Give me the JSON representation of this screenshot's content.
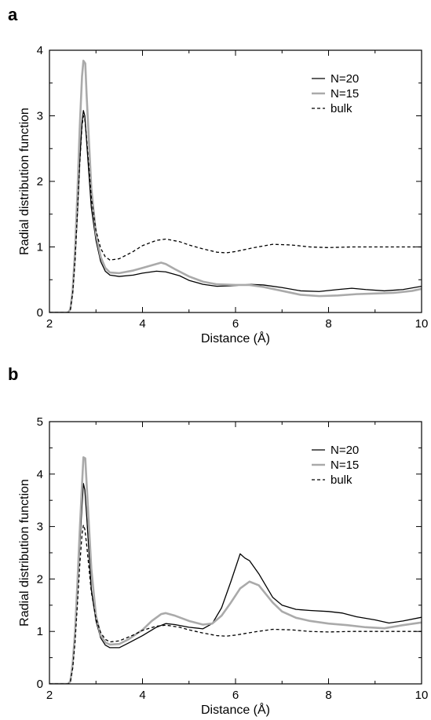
{
  "panels": [
    {
      "letter": "a",
      "chart_data": {
        "type": "line",
        "title": "",
        "xlabel": "Distance (Å)",
        "ylabel": "Radial distribution function",
        "xlim": [
          2,
          10
        ],
        "ylim": [
          0,
          4
        ],
        "xticks": [
          2,
          4,
          6,
          8,
          10
        ],
        "yticks": [
          0,
          1,
          2,
          3,
          4
        ],
        "grid": false,
        "legend_position": "top-right",
        "series": [
          {
            "name": "N=20",
            "color": "#000000",
            "style": "solid",
            "points": [
              [
                2.0,
                0
              ],
              [
                2.4,
                0
              ],
              [
                2.45,
                0.05
              ],
              [
                2.5,
                0.3
              ],
              [
                2.55,
                0.8
              ],
              [
                2.6,
                1.5
              ],
              [
                2.65,
                2.3
              ],
              [
                2.7,
                2.9
              ],
              [
                2.73,
                3.08
              ],
              [
                2.76,
                3.0
              ],
              [
                2.8,
                2.6
              ],
              [
                2.85,
                2.1
              ],
              [
                2.9,
                1.6
              ],
              [
                3.0,
                1.1
              ],
              [
                3.1,
                0.78
              ],
              [
                3.2,
                0.63
              ],
              [
                3.3,
                0.57
              ],
              [
                3.5,
                0.55
              ],
              [
                3.8,
                0.57
              ],
              [
                4.0,
                0.6
              ],
              [
                4.3,
                0.63
              ],
              [
                4.5,
                0.62
              ],
              [
                4.8,
                0.56
              ],
              [
                5.0,
                0.49
              ],
              [
                5.3,
                0.43
              ],
              [
                5.6,
                0.4
              ],
              [
                6.0,
                0.41
              ],
              [
                6.3,
                0.43
              ],
              [
                6.6,
                0.42
              ],
              [
                7.0,
                0.38
              ],
              [
                7.4,
                0.33
              ],
              [
                7.8,
                0.32
              ],
              [
                8.2,
                0.35
              ],
              [
                8.5,
                0.37
              ],
              [
                8.8,
                0.35
              ],
              [
                9.2,
                0.33
              ],
              [
                9.6,
                0.35
              ],
              [
                10.0,
                0.4
              ]
            ]
          },
          {
            "name": "N=15",
            "color": "#aaaaaa",
            "style": "solid",
            "points": [
              [
                2.0,
                0
              ],
              [
                2.4,
                0
              ],
              [
                2.45,
                0.05
              ],
              [
                2.5,
                0.35
              ],
              [
                2.55,
                0.95
              ],
              [
                2.6,
                1.8
              ],
              [
                2.65,
                2.8
              ],
              [
                2.7,
                3.6
              ],
              [
                2.73,
                3.84
              ],
              [
                2.77,
                3.8
              ],
              [
                2.8,
                3.3
              ],
              [
                2.85,
                2.6
              ],
              [
                2.9,
                1.9
              ],
              [
                3.0,
                1.2
              ],
              [
                3.1,
                0.85
              ],
              [
                3.2,
                0.68
              ],
              [
                3.3,
                0.61
              ],
              [
                3.5,
                0.6
              ],
              [
                3.8,
                0.64
              ],
              [
                4.0,
                0.68
              ],
              [
                4.2,
                0.72
              ],
              [
                4.4,
                0.76
              ],
              [
                4.5,
                0.74
              ],
              [
                4.7,
                0.66
              ],
              [
                5.0,
                0.55
              ],
              [
                5.3,
                0.47
              ],
              [
                5.6,
                0.43
              ],
              [
                6.0,
                0.42
              ],
              [
                6.3,
                0.42
              ],
              [
                6.6,
                0.39
              ],
              [
                7.0,
                0.33
              ],
              [
                7.4,
                0.27
              ],
              [
                7.8,
                0.25
              ],
              [
                8.2,
                0.26
              ],
              [
                8.6,
                0.28
              ],
              [
                9.0,
                0.29
              ],
              [
                9.4,
                0.3
              ],
              [
                9.8,
                0.33
              ],
              [
                10.0,
                0.36
              ]
            ]
          },
          {
            "name": "bulk",
            "color": "#000000",
            "style": "dashed",
            "points": [
              [
                2.0,
                0
              ],
              [
                2.4,
                0
              ],
              [
                2.45,
                0.05
              ],
              [
                2.5,
                0.3
              ],
              [
                2.55,
                0.8
              ],
              [
                2.6,
                1.5
              ],
              [
                2.65,
                2.25
              ],
              [
                2.7,
                2.85
              ],
              [
                2.73,
                3.0
              ],
              [
                2.76,
                2.95
              ],
              [
                2.8,
                2.65
              ],
              [
                2.85,
                2.2
              ],
              [
                2.9,
                1.75
              ],
              [
                3.0,
                1.25
              ],
              [
                3.1,
                0.98
              ],
              [
                3.2,
                0.85
              ],
              [
                3.3,
                0.8
              ],
              [
                3.5,
                0.82
              ],
              [
                3.8,
                0.93
              ],
              [
                4.0,
                1.02
              ],
              [
                4.3,
                1.1
              ],
              [
                4.5,
                1.12
              ],
              [
                4.8,
                1.08
              ],
              [
                5.0,
                1.03
              ],
              [
                5.3,
                0.97
              ],
              [
                5.6,
                0.92
              ],
              [
                5.8,
                0.91
              ],
              [
                6.0,
                0.93
              ],
              [
                6.4,
                0.99
              ],
              [
                6.8,
                1.04
              ],
              [
                7.2,
                1.03
              ],
              [
                7.6,
                1.0
              ],
              [
                8.0,
                0.99
              ],
              [
                8.5,
                1.0
              ],
              [
                9.0,
                1.0
              ],
              [
                10.0,
                1.0
              ]
            ]
          }
        ]
      }
    },
    {
      "letter": "b",
      "chart_data": {
        "type": "line",
        "title": "",
        "xlabel": "Distance (Å)",
        "ylabel": "Radial distribution function",
        "xlim": [
          2,
          10
        ],
        "ylim": [
          0,
          5
        ],
        "xticks": [
          2,
          4,
          6,
          8,
          10
        ],
        "yticks": [
          0,
          1,
          2,
          3,
          4,
          5
        ],
        "grid": false,
        "legend_position": "top-right",
        "series": [
          {
            "name": "N=20",
            "color": "#000000",
            "style": "solid",
            "points": [
              [
                2.0,
                0
              ],
              [
                2.4,
                0
              ],
              [
                2.45,
                0.05
              ],
              [
                2.5,
                0.35
              ],
              [
                2.55,
                0.9
              ],
              [
                2.6,
                1.7
              ],
              [
                2.65,
                2.6
              ],
              [
                2.7,
                3.4
              ],
              [
                2.73,
                3.82
              ],
              [
                2.76,
                3.7
              ],
              [
                2.8,
                3.2
              ],
              [
                2.85,
                2.5
              ],
              [
                2.9,
                1.8
              ],
              [
                3.0,
                1.2
              ],
              [
                3.1,
                0.88
              ],
              [
                3.2,
                0.74
              ],
              [
                3.3,
                0.69
              ],
              [
                3.5,
                0.69
              ],
              [
                3.7,
                0.78
              ],
              [
                4.0,
                0.92
              ],
              [
                4.3,
                1.08
              ],
              [
                4.5,
                1.15
              ],
              [
                4.7,
                1.13
              ],
              [
                5.0,
                1.08
              ],
              [
                5.3,
                1.05
              ],
              [
                5.5,
                1.15
              ],
              [
                5.7,
                1.45
              ],
              [
                5.9,
                1.95
              ],
              [
                6.1,
                2.48
              ],
              [
                6.2,
                2.4
              ],
              [
                6.3,
                2.35
              ],
              [
                6.5,
                2.1
              ],
              [
                6.8,
                1.65
              ],
              [
                7.0,
                1.5
              ],
              [
                7.3,
                1.42
              ],
              [
                7.6,
                1.4
              ],
              [
                8.0,
                1.38
              ],
              [
                8.3,
                1.35
              ],
              [
                8.6,
                1.28
              ],
              [
                9.0,
                1.22
              ],
              [
                9.3,
                1.16
              ],
              [
                9.6,
                1.2
              ],
              [
                10.0,
                1.27
              ]
            ]
          },
          {
            "name": "N=15",
            "color": "#aaaaaa",
            "style": "solid",
            "points": [
              [
                2.0,
                0
              ],
              [
                2.4,
                0
              ],
              [
                2.45,
                0.05
              ],
              [
                2.5,
                0.4
              ],
              [
                2.55,
                1.0
              ],
              [
                2.6,
                1.9
              ],
              [
                2.65,
                2.9
              ],
              [
                2.7,
                3.8
              ],
              [
                2.73,
                4.32
              ],
              [
                2.77,
                4.3
              ],
              [
                2.8,
                3.8
              ],
              [
                2.85,
                3.0
              ],
              [
                2.9,
                2.2
              ],
              [
                3.0,
                1.3
              ],
              [
                3.1,
                0.93
              ],
              [
                3.2,
                0.79
              ],
              [
                3.3,
                0.75
              ],
              [
                3.5,
                0.76
              ],
              [
                3.7,
                0.85
              ],
              [
                4.0,
                1.03
              ],
              [
                4.2,
                1.2
              ],
              [
                4.4,
                1.33
              ],
              [
                4.5,
                1.35
              ],
              [
                4.7,
                1.3
              ],
              [
                5.0,
                1.2
              ],
              [
                5.3,
                1.13
              ],
              [
                5.5,
                1.15
              ],
              [
                5.7,
                1.3
              ],
              [
                5.9,
                1.55
              ],
              [
                6.1,
                1.82
              ],
              [
                6.3,
                1.95
              ],
              [
                6.5,
                1.88
              ],
              [
                6.8,
                1.55
              ],
              [
                7.0,
                1.38
              ],
              [
                7.3,
                1.26
              ],
              [
                7.6,
                1.2
              ],
              [
                8.0,
                1.15
              ],
              [
                8.4,
                1.12
              ],
              [
                8.8,
                1.08
              ],
              [
                9.2,
                1.06
              ],
              [
                9.6,
                1.12
              ],
              [
                10.0,
                1.17
              ]
            ]
          },
          {
            "name": "bulk",
            "color": "#000000",
            "style": "dashed",
            "points": [
              [
                2.0,
                0
              ],
              [
                2.4,
                0
              ],
              [
                2.45,
                0.05
              ],
              [
                2.5,
                0.3
              ],
              [
                2.55,
                0.8
              ],
              [
                2.6,
                1.5
              ],
              [
                2.65,
                2.25
              ],
              [
                2.7,
                2.85
              ],
              [
                2.73,
                3.03
              ],
              [
                2.76,
                2.95
              ],
              [
                2.8,
                2.65
              ],
              [
                2.85,
                2.2
              ],
              [
                2.9,
                1.75
              ],
              [
                3.0,
                1.25
              ],
              [
                3.1,
                0.98
              ],
              [
                3.2,
                0.85
              ],
              [
                3.3,
                0.8
              ],
              [
                3.5,
                0.82
              ],
              [
                3.8,
                0.93
              ],
              [
                4.0,
                1.02
              ],
              [
                4.3,
                1.1
              ],
              [
                4.5,
                1.12
              ],
              [
                4.8,
                1.08
              ],
              [
                5.0,
                1.03
              ],
              [
                5.3,
                0.97
              ],
              [
                5.6,
                0.92
              ],
              [
                5.8,
                0.91
              ],
              [
                6.0,
                0.93
              ],
              [
                6.4,
                0.99
              ],
              [
                6.8,
                1.04
              ],
              [
                7.2,
                1.03
              ],
              [
                7.6,
                1.0
              ],
              [
                8.0,
                0.99
              ],
              [
                8.5,
                1.0
              ],
              [
                9.0,
                1.0
              ],
              [
                10.0,
                1.0
              ]
            ]
          }
        ]
      }
    }
  ]
}
